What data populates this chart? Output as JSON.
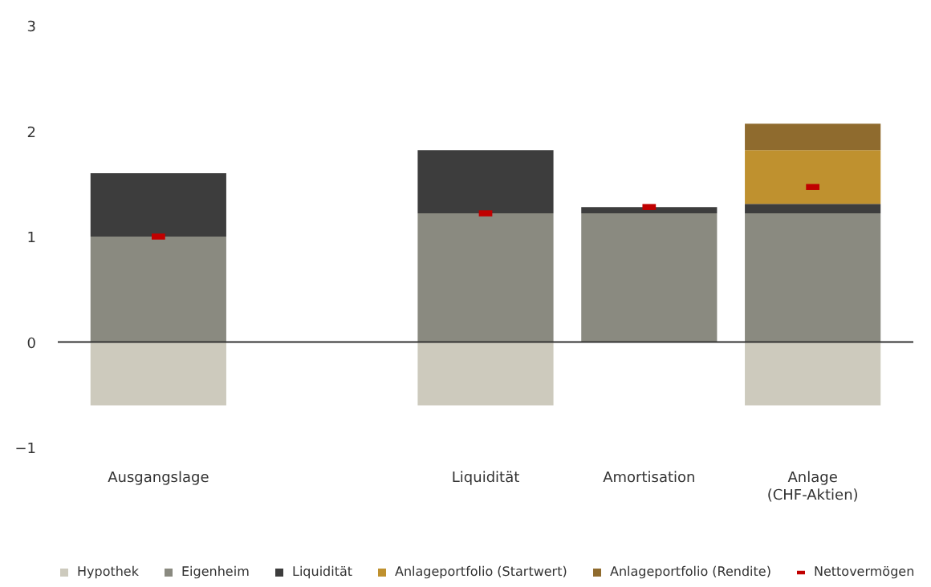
{
  "chart_data": {
    "type": "bar",
    "stacked": true,
    "categories": [
      "Ausgangslage",
      null,
      "Liquidität",
      "Amortisation",
      "Anlage\n(CHF-Aktien)"
    ],
    "series": [
      {
        "name": "Hypothek",
        "color": "#cdcabd",
        "values": [
          -0.6,
          null,
          -0.6,
          null,
          -0.6
        ]
      },
      {
        "name": "Eigenheim",
        "color": "#8a8a80",
        "values": [
          1.0,
          null,
          1.22,
          1.22,
          1.22
        ]
      },
      {
        "name": "Liquidität",
        "color": "#3d3d3d",
        "values": [
          0.6,
          null,
          0.6,
          0.06,
          0.09
        ]
      },
      {
        "name": "Anlageportfolio (Startwert)",
        "color": "#bf912f",
        "values": [
          null,
          null,
          null,
          null,
          0.51
        ]
      },
      {
        "name": "Anlageportfolio (Rendite)",
        "color": "#8f6b2e",
        "values": [
          null,
          null,
          null,
          null,
          0.25
        ]
      },
      {
        "name": "Nettovermögen",
        "type": "scatter",
        "color": "#c00000",
        "values": [
          1.0,
          null,
          1.22,
          1.28,
          1.47
        ]
      }
    ],
    "ylim": [
      -1,
      3
    ],
    "yticks": [
      -1,
      0,
      1,
      2,
      3
    ],
    "ref_lines": [
      {
        "axis": "y",
        "value": 0,
        "color": "#333333"
      }
    ],
    "grid": false,
    "legend": "bottom"
  }
}
